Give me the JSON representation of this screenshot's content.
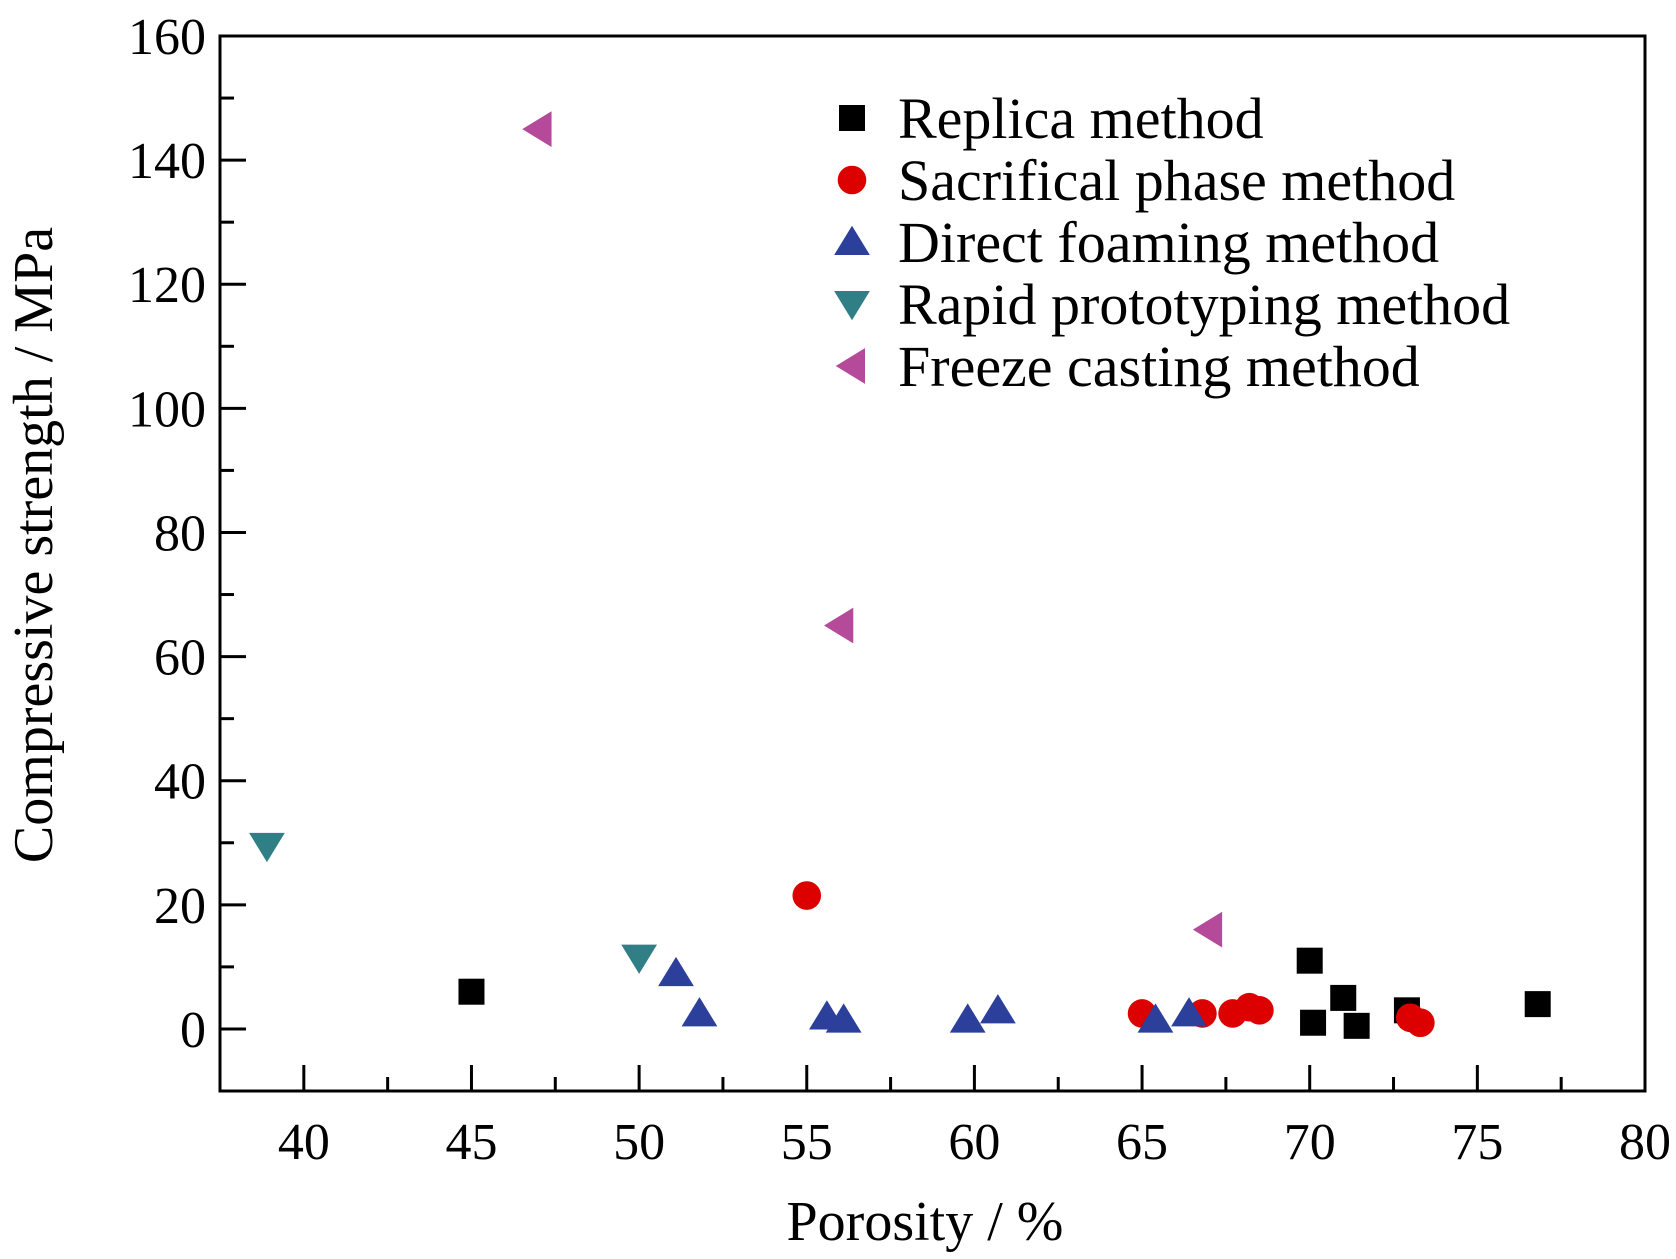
{
  "chart_data": {
    "type": "scatter",
    "title": "",
    "xlabel": "Porosity / %",
    "ylabel": "Compressive strength / MPa",
    "xlim": [
      37.5,
      80
    ],
    "ylim": [
      -10,
      160
    ],
    "xticks": [
      40,
      45,
      50,
      55,
      60,
      65,
      70,
      75,
      80
    ],
    "yticks": [
      0,
      20,
      40,
      60,
      80,
      100,
      120,
      140,
      160
    ],
    "grid": false,
    "legend_position": "top-right",
    "series": [
      {
        "name": "Replica method",
        "marker": "square",
        "color": "#000000",
        "points": [
          [
            45,
            6
          ],
          [
            70,
            11
          ],
          [
            70.1,
            1
          ],
          [
            71,
            5
          ],
          [
            71.4,
            0.5
          ],
          [
            72.9,
            3
          ],
          [
            76.8,
            4
          ]
        ]
      },
      {
        "name": "Sacrifical phase method",
        "marker": "circle",
        "color": "#dd0000",
        "points": [
          [
            55,
            21.5
          ],
          [
            65,
            2.5
          ],
          [
            66.8,
            2.5
          ],
          [
            67.7,
            2.5
          ],
          [
            68.2,
            3.5
          ],
          [
            68.5,
            3
          ],
          [
            73,
            1.8
          ],
          [
            73.3,
            1
          ]
        ]
      },
      {
        "name": "Direct foaming method",
        "marker": "triangle-up",
        "color": "#2b3f9b",
        "points": [
          [
            51.1,
            9
          ],
          [
            51.8,
            2.5
          ],
          [
            55.6,
            2
          ],
          [
            56.1,
            1.5
          ],
          [
            59.8,
            1.5
          ],
          [
            60.7,
            3
          ],
          [
            65.4,
            1.5
          ],
          [
            66.4,
            2.5
          ]
        ]
      },
      {
        "name": "Rapid prototyping method",
        "marker": "triangle-down",
        "color": "#307f86",
        "points": [
          [
            38.9,
            29.5
          ],
          [
            50,
            11.5
          ]
        ]
      },
      {
        "name": "Freeze casting method",
        "marker": "triangle-left",
        "color": "#b44a99",
        "points": [
          [
            47,
            145
          ],
          [
            56,
            65
          ],
          [
            67,
            16
          ]
        ]
      }
    ]
  }
}
